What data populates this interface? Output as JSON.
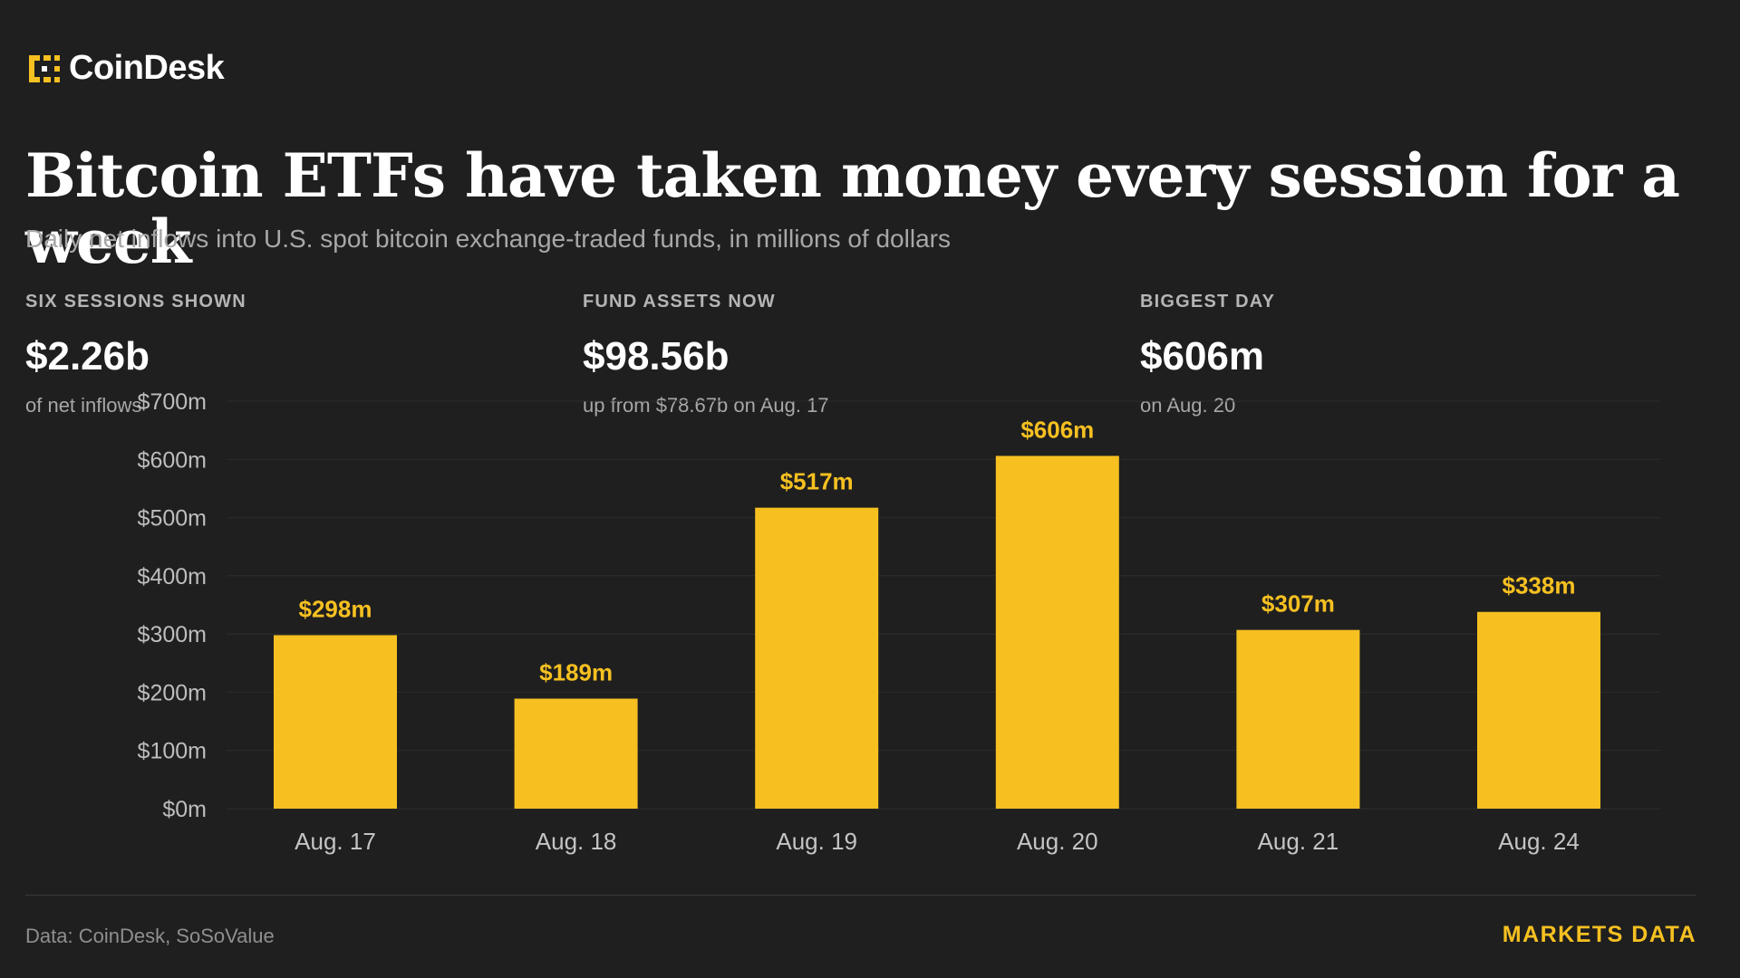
{
  "brand": {
    "name": "CoinDesk",
    "icon": "coindesk-logo-icon",
    "accent_color": "#f6c021"
  },
  "headline": "Bitcoin ETFs have taken money every session for a week",
  "subhead": "Daily net inflows into U.S. spot bitcoin exchange-traded funds, in millions of dollars",
  "stats": [
    {
      "label": "SIX SESSIONS SHOWN",
      "value": "$2.26b",
      "note": "of net inflows"
    },
    {
      "label": "FUND ASSETS NOW",
      "value": "$98.56b",
      "note": "up from $78.67b on Aug. 17"
    },
    {
      "label": "BIGGEST DAY",
      "value": "$606m",
      "note": "on Aug. 20"
    }
  ],
  "chart_data": {
    "type": "bar",
    "categories": [
      "Aug. 17",
      "Aug. 18",
      "Aug. 19",
      "Aug. 20",
      "Aug. 21",
      "Aug. 24"
    ],
    "values": [
      298,
      189,
      517,
      606,
      307,
      338
    ],
    "data_labels": [
      "$298m",
      "$189m",
      "$517m",
      "$606m",
      "$307m",
      "$338m"
    ],
    "yticks": [
      0,
      100,
      200,
      300,
      400,
      500,
      600,
      700
    ],
    "ytick_labels": [
      "$0m",
      "$100m",
      "$200m",
      "$300m",
      "$400m",
      "$500m",
      "$600m",
      "$700m"
    ],
    "ylim": [
      0,
      700
    ],
    "grid": true,
    "bar_color": "#f6c021",
    "label_color": "#f6c021"
  },
  "footer": {
    "source": "Data: CoinDesk, SoSoValue",
    "tag": "MARKETS DATA"
  }
}
